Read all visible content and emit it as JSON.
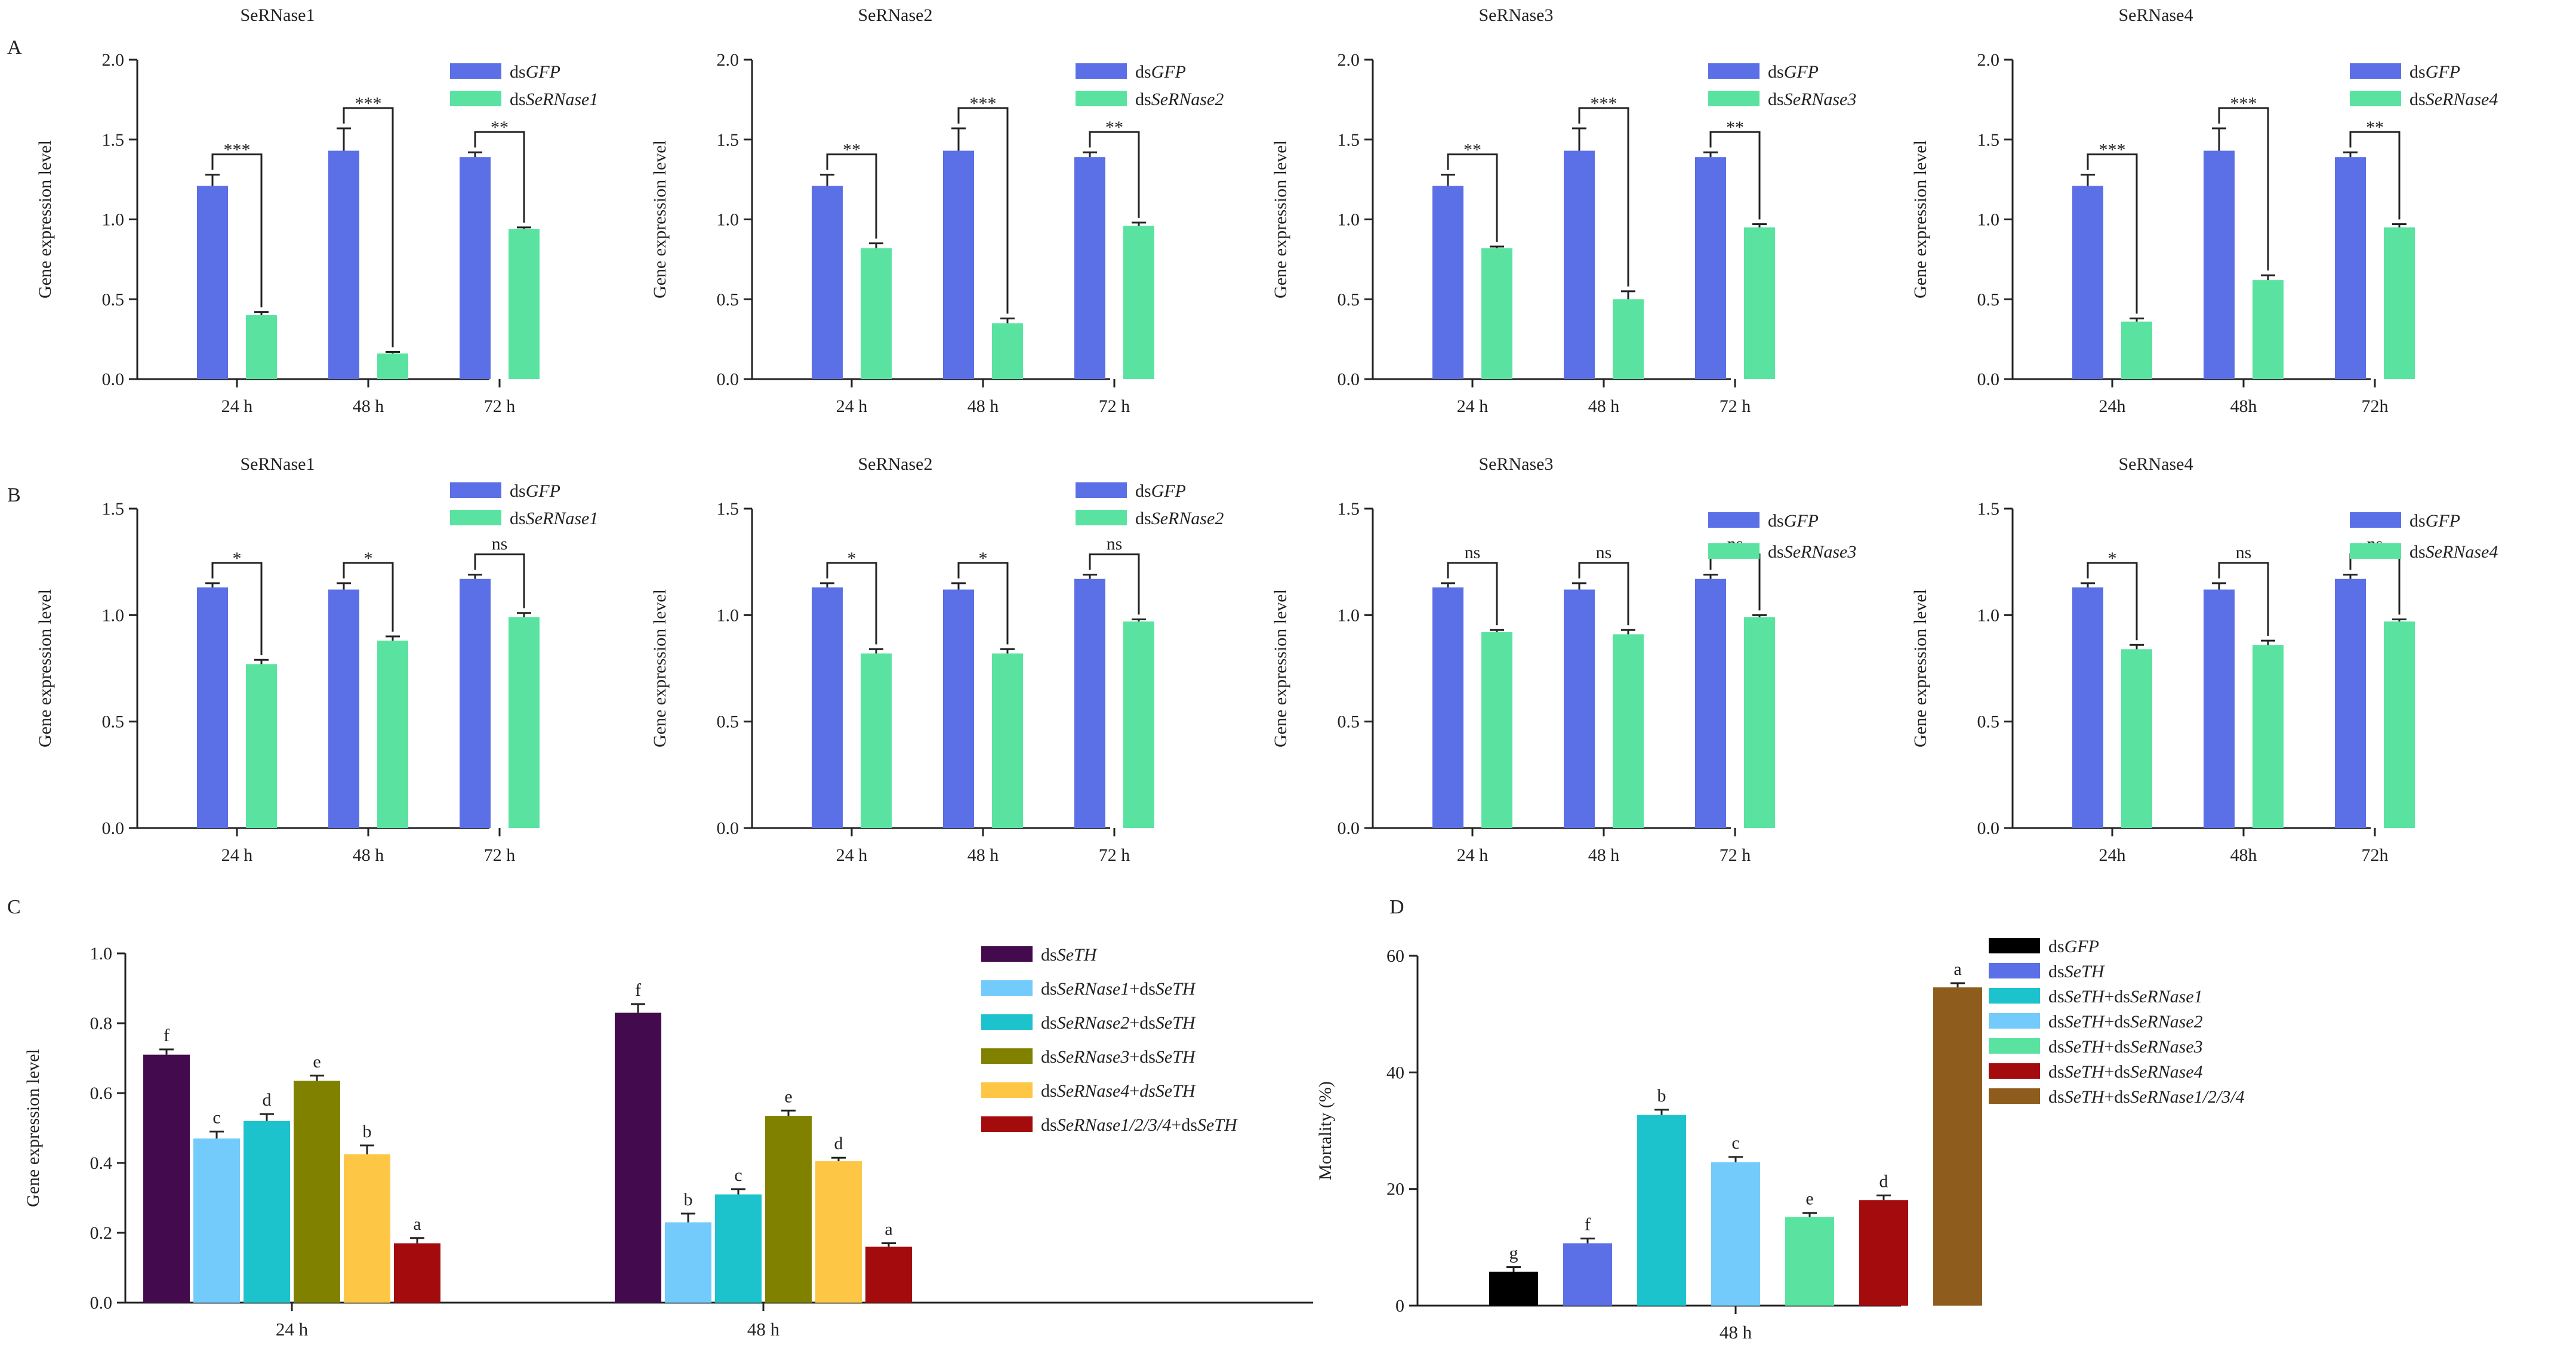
{
  "colors": {
    "dsGFP": "#5b6fe6",
    "dsSeRNase": "#5ae3a0",
    "dsSeTH": "#430b4d",
    "rn1_th": "#72cbfb",
    "rn2_th": "#1cc3cd",
    "rn3_th": "#818100",
    "rn4_th": "#fdc644",
    "rnall_th": "#a40b0c",
    "gfp_black": "#000000",
    "th_blue": "#5b6fe6",
    "th_rn1": "#1cc3cd",
    "th_rn2": "#72cbfb",
    "th_rn3": "#5ae3a0",
    "th_rn4": "#a40b0c",
    "th_rnall": "#8e5d1e"
  },
  "chart_data": [
    {
      "panel": "A",
      "type": "bar",
      "title": "SeRNase1",
      "ylabel": "Gene expression level",
      "ylim": [
        0,
        2.0
      ],
      "yticks": [
        "0.0",
        "0.5",
        "1.0",
        "1.5",
        "2.0"
      ],
      "categories": [
        "24 h",
        "48 h",
        "72 h"
      ],
      "series": [
        {
          "name": "dsGFP",
          "prefix": "ds",
          "italic": "GFP",
          "suffix": "",
          "colorKey": "dsGFP",
          "values": [
            1.21,
            1.43,
            1.39
          ],
          "errors": [
            0.07,
            0.14,
            0.03
          ]
        },
        {
          "name": "dsSeRNase1",
          "prefix": "ds",
          "italic": "SeRNase1",
          "suffix": "",
          "colorKey": "dsSeRNase",
          "values": [
            0.4,
            0.16,
            0.94
          ],
          "errors": [
            0.02,
            0.01,
            0.01
          ]
        }
      ],
      "significance": [
        "***",
        "***",
        "**"
      ]
    },
    {
      "panel": "",
      "type": "bar",
      "title": "SeRNase2",
      "ylabel": "Gene expression level",
      "ylim": [
        0,
        2.0
      ],
      "yticks": [
        "0.0",
        "0.5",
        "1.0",
        "1.5",
        "2.0"
      ],
      "categories": [
        "24 h",
        "48 h",
        "72 h"
      ],
      "series": [
        {
          "name": "dsGFP",
          "prefix": "ds",
          "italic": "GFP",
          "suffix": "",
          "colorKey": "dsGFP",
          "values": [
            1.21,
            1.43,
            1.39
          ],
          "errors": [
            0.07,
            0.14,
            0.03
          ]
        },
        {
          "name": "dsSeRNase2",
          "prefix": "ds",
          "italic": "SeRNase2",
          "suffix": "",
          "colorKey": "dsSeRNase",
          "values": [
            0.82,
            0.35,
            0.96
          ],
          "errors": [
            0.03,
            0.03,
            0.02
          ]
        }
      ],
      "significance": [
        "**",
        "***",
        "**"
      ]
    },
    {
      "panel": "",
      "type": "bar",
      "title": "SeRNase3",
      "ylabel": "Gene expression level",
      "ylim": [
        0,
        2.0
      ],
      "yticks": [
        "0.0",
        "0.5",
        "1.0",
        "1.5",
        "2.0"
      ],
      "categories": [
        "24 h",
        "48 h",
        "72 h"
      ],
      "series": [
        {
          "name": "dsGFP",
          "prefix": "ds",
          "italic": "GFP",
          "suffix": "",
          "colorKey": "dsGFP",
          "values": [
            1.21,
            1.43,
            1.39
          ],
          "errors": [
            0.07,
            0.14,
            0.03
          ]
        },
        {
          "name": "dsSeRNase3",
          "prefix": "ds",
          "italic": "SeRNase3",
          "suffix": "",
          "colorKey": "dsSeRNase",
          "values": [
            0.82,
            0.5,
            0.95
          ],
          "errors": [
            0.01,
            0.05,
            0.02
          ]
        }
      ],
      "significance": [
        "**",
        "***",
        "**"
      ]
    },
    {
      "panel": "",
      "type": "bar",
      "title": "SeRNase4",
      "ylabel": "Gene expression level",
      "ylim": [
        0,
        2.0
      ],
      "yticks": [
        "0.0",
        "0.5",
        "1.0",
        "1.5",
        "2.0"
      ],
      "categories": [
        "24h",
        "48h",
        "72h"
      ],
      "series": [
        {
          "name": "dsGFP",
          "prefix": "ds",
          "italic": "GFP",
          "suffix": "",
          "colorKey": "dsGFP",
          "values": [
            1.21,
            1.43,
            1.39
          ],
          "errors": [
            0.07,
            0.14,
            0.03
          ]
        },
        {
          "name": "dsSeRNase4",
          "prefix": "ds",
          "italic": "SeRNase4",
          "suffix": "",
          "colorKey": "dsSeRNase",
          "values": [
            0.36,
            0.62,
            0.95
          ],
          "errors": [
            0.02,
            0.03,
            0.02
          ]
        }
      ],
      "significance": [
        "***",
        "***",
        "**"
      ]
    },
    {
      "panel": "B",
      "type": "bar",
      "title": "SeRNase1",
      "ylabel": "Gene expression level",
      "ylim": [
        0,
        1.5
      ],
      "yticks": [
        "0.0",
        "0.5",
        "1.0",
        "1.5"
      ],
      "categories": [
        "24 h",
        "48 h",
        "72 h"
      ],
      "series": [
        {
          "name": "dsGFP",
          "prefix": "ds",
          "italic": "GFP",
          "suffix": "",
          "colorKey": "dsGFP",
          "values": [
            1.13,
            1.12,
            1.17
          ],
          "errors": [
            0.02,
            0.03,
            0.02
          ]
        },
        {
          "name": "dsSeRNase1",
          "prefix": "ds",
          "italic": "SeRNase1",
          "suffix": "",
          "colorKey": "dsSeRNase",
          "values": [
            0.77,
            0.88,
            0.99
          ],
          "errors": [
            0.02,
            0.02,
            0.02
          ]
        }
      ],
      "significance": [
        "*",
        "*",
        "ns"
      ]
    },
    {
      "panel": "",
      "type": "bar",
      "title": "SeRNase2",
      "ylabel": "Gene expression level",
      "ylim": [
        0,
        1.5
      ],
      "yticks": [
        "0.0",
        "0.5",
        "1.0",
        "1.5"
      ],
      "categories": [
        "24 h",
        "48 h",
        "72 h"
      ],
      "series": [
        {
          "name": "dsGFP",
          "prefix": "ds",
          "italic": "GFP",
          "suffix": "",
          "colorKey": "dsGFP",
          "values": [
            1.13,
            1.12,
            1.17
          ],
          "errors": [
            0.02,
            0.03,
            0.02
          ]
        },
        {
          "name": "dsSeRNase2",
          "prefix": "ds",
          "italic": "SeRNase2",
          "suffix": "",
          "colorKey": "dsSeRNase",
          "values": [
            0.82,
            0.82,
            0.97
          ],
          "errors": [
            0.02,
            0.02,
            0.01
          ]
        }
      ],
      "significance": [
        "*",
        "*",
        "ns"
      ]
    },
    {
      "panel": "",
      "type": "bar",
      "title": "SeRNase3",
      "ylabel": "Gene expression level",
      "ylim": [
        0,
        1.5
      ],
      "yticks": [
        "0.0",
        "0.5",
        "1.0",
        "1.5"
      ],
      "categories": [
        "24 h",
        "48 h",
        "72 h"
      ],
      "series": [
        {
          "name": "dsGFP",
          "prefix": "ds",
          "italic": "GFP",
          "suffix": "",
          "colorKey": "dsGFP",
          "values": [
            1.13,
            1.12,
            1.17
          ],
          "errors": [
            0.02,
            0.03,
            0.02
          ]
        },
        {
          "name": "dsSeRNase3",
          "prefix": "ds",
          "italic": "SeRNase3",
          "suffix": "",
          "colorKey": "dsSeRNase",
          "values": [
            0.92,
            0.91,
            0.99
          ],
          "errors": [
            0.01,
            0.02,
            0.01
          ]
        }
      ],
      "significance": [
        "ns",
        "ns",
        "ns"
      ]
    },
    {
      "panel": "",
      "type": "bar",
      "title": "SeRNase4",
      "ylabel": "Gene expression level",
      "ylim": [
        0,
        1.5
      ],
      "yticks": [
        "0.0",
        "0.5",
        "1.0",
        "1.5"
      ],
      "categories": [
        "24h",
        "48h",
        "72h"
      ],
      "series": [
        {
          "name": "dsGFP",
          "prefix": "ds",
          "italic": "GFP",
          "suffix": "",
          "colorKey": "dsGFP",
          "values": [
            1.13,
            1.12,
            1.17
          ],
          "errors": [
            0.02,
            0.03,
            0.02
          ]
        },
        {
          "name": "dsSeRNase4",
          "prefix": "ds",
          "italic": "SeRNase4",
          "suffix": "",
          "colorKey": "dsSeRNase",
          "values": [
            0.84,
            0.86,
            0.97
          ],
          "errors": [
            0.02,
            0.02,
            0.01
          ]
        }
      ],
      "significance": [
        "*",
        "ns",
        "ns"
      ]
    },
    {
      "panel": "C",
      "type": "bar",
      "title": "",
      "ylabel": "Gene expression level",
      "ylim": [
        0,
        1.0
      ],
      "yticks": [
        "0.0",
        "0.2",
        "0.4",
        "0.6",
        "0.8",
        "1.0"
      ],
      "categories": [
        "24 h",
        "48 h"
      ],
      "series": [
        {
          "name": "dsSeTH",
          "prefix": "ds",
          "italic": "SeTH",
          "suffix": "",
          "colorKey": "dsSeTH",
          "values": [
            0.71,
            0.83
          ],
          "errors": [
            0.015,
            0.025
          ],
          "letters": [
            "f",
            "f"
          ]
        },
        {
          "name": "dsSeRNase1+dsSeTH",
          "prefix": "ds",
          "italic": "SeRNase1",
          "suffix": "+ds",
          "italic2": "SeTH",
          "colorKey": "rn1_th",
          "values": [
            0.47,
            0.23
          ],
          "errors": [
            0.02,
            0.025
          ],
          "letters": [
            "c",
            "b"
          ]
        },
        {
          "name": "dsSeRNase2+dsSeTH",
          "prefix": "ds",
          "italic": "SeRNase2",
          "suffix": "+ds",
          "italic2": "SeTH",
          "colorKey": "rn2_th",
          "values": [
            0.52,
            0.31
          ],
          "errors": [
            0.02,
            0.015
          ],
          "letters": [
            "d",
            "c"
          ]
        },
        {
          "name": "dsSeRNase3+dsSeTH",
          "prefix": "ds",
          "italic": "SeRNase3",
          "suffix": "+ds",
          "italic2": "SeTH",
          "colorKey": "rn3_th",
          "values": [
            0.635,
            0.535
          ],
          "errors": [
            0.015,
            0.015
          ],
          "letters": [
            "e",
            "e"
          ]
        },
        {
          "name": "dsSeRNase4+dsSeTH",
          "prefix": "ds",
          "italic": "SeRNase4",
          "suffix": "+",
          "italic2": "dsSeTH",
          "colorKey": "rn4_th",
          "values": [
            0.425,
            0.405
          ],
          "errors": [
            0.025,
            0.01
          ],
          "letters": [
            "b",
            "d"
          ]
        },
        {
          "name": "dsSeRNase1/2/3/4+dsSeTH",
          "prefix": "ds",
          "italic": "SeRNase1/2/3/4",
          "suffix": "+ds",
          "italic2": "SeTH",
          "colorKey": "rnall_th",
          "values": [
            0.17,
            0.16
          ],
          "errors": [
            0.015,
            0.01
          ],
          "letters": [
            "a",
            "a"
          ]
        }
      ]
    },
    {
      "panel": "D",
      "type": "bar",
      "title": "",
      "ylabel": "Mortality (%)",
      "ylim": [
        0,
        60
      ],
      "yticks": [
        "0",
        "20",
        "40",
        "60"
      ],
      "categories": [
        "48 h"
      ],
      "series": [
        {
          "name": "dsGFP",
          "prefix": "ds",
          "italic": "GFP",
          "suffix": "",
          "colorKey": "gfp_black",
          "values": [
            5.8
          ],
          "errors": [
            0.8
          ],
          "letters": [
            "g"
          ]
        },
        {
          "name": "dsSeTH",
          "prefix": "ds",
          "italic": "SeTH",
          "suffix": "",
          "colorKey": "th_blue",
          "values": [
            10.7
          ],
          "errors": [
            0.8
          ],
          "letters": [
            "f"
          ]
        },
        {
          "name": "dsSeTH+dsSeRNase1",
          "prefix": "ds",
          "italic": "SeTH",
          "suffix": "+ds",
          "italic2": "SeRNase1",
          "colorKey": "th_rn1",
          "values": [
            32.7
          ],
          "errors": [
            0.9
          ],
          "letters": [
            "b"
          ]
        },
        {
          "name": "dsSeTH+dsSeRNase2",
          "prefix": "ds",
          "italic": "SeTH",
          "suffix": "+ds",
          "italic2": "SeRNase2",
          "colorKey": "th_rn2",
          "values": [
            24.6
          ],
          "errors": [
            0.9
          ],
          "letters": [
            "c"
          ]
        },
        {
          "name": "dsSeTH+dsSeRNase3",
          "prefix": "ds",
          "italic": "SeTH",
          "suffix": "+ds",
          "italic2": "SeRNase3",
          "colorKey": "th_rn3",
          "values": [
            15.2
          ],
          "errors": [
            0.7
          ],
          "letters": [
            "e"
          ]
        },
        {
          "name": "dsSeTH+dsSeRNase4",
          "prefix": "ds",
          "italic": "SeTH",
          "suffix": "+ds",
          "italic2": "SeRNase4",
          "colorKey": "th_rn4",
          "values": [
            18.1
          ],
          "errors": [
            0.8
          ],
          "letters": [
            "d"
          ]
        },
        {
          "name": "dsSeTH+dsSeRNase1/2/3/4",
          "prefix": "ds",
          "italic": "SeTH",
          "suffix": "+ds",
          "italic2": "SeRNase1/2/3/4",
          "colorKey": "th_rnall",
          "values": [
            54.6
          ],
          "errors": [
            0.7
          ],
          "letters": [
            "a"
          ]
        }
      ]
    }
  ]
}
